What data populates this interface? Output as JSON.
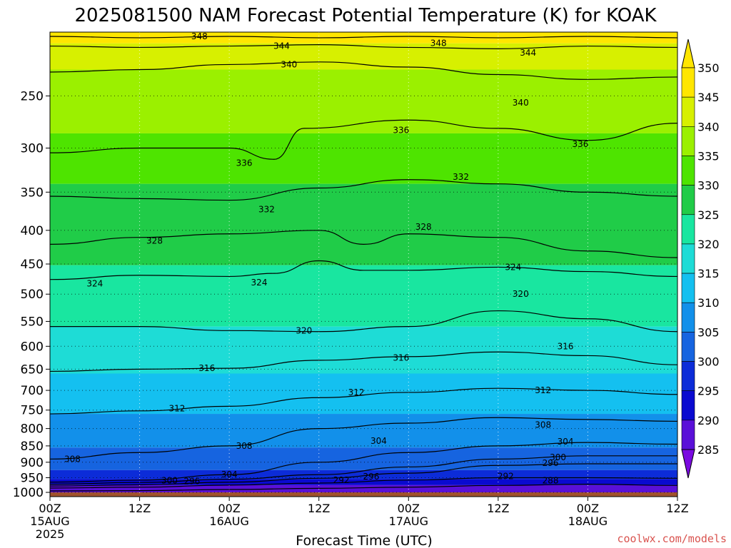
{
  "chart_data": {
    "type": "contour",
    "title": "2025081500 NAM Forecast Potential Temperature (K) for KOAK",
    "xlabel": "Forecast Time (UTC)",
    "ylabel": "",
    "credit": "coolwx.com/models",
    "x_ticks": [
      {
        "hours": 0,
        "label": "00Z",
        "sub1": "15AUG",
        "sub2": "2025"
      },
      {
        "hours": 12,
        "label": "12Z",
        "sub1": "",
        "sub2": ""
      },
      {
        "hours": 24,
        "label": "00Z",
        "sub1": "16AUG",
        "sub2": ""
      },
      {
        "hours": 36,
        "label": "12Z",
        "sub1": "",
        "sub2": ""
      },
      {
        "hours": 48,
        "label": "00Z",
        "sub1": "17AUG",
        "sub2": ""
      },
      {
        "hours": 60,
        "label": "12Z",
        "sub1": "",
        "sub2": ""
      },
      {
        "hours": 72,
        "label": "00Z",
        "sub1": "18AUG",
        "sub2": ""
      },
      {
        "hours": 84,
        "label": "12Z",
        "sub1": "",
        "sub2": ""
      }
    ],
    "x_range_hours": [
      0,
      84
    ],
    "y_ticks": [
      250,
      300,
      350,
      400,
      450,
      500,
      550,
      600,
      650,
      700,
      750,
      800,
      850,
      900,
      950,
      1000
    ],
    "y_range_hpa": [
      200,
      1015
    ],
    "y_scale": "log",
    "ground_pressure": 1000,
    "colorbar": {
      "ticks": [
        350,
        345,
        340,
        335,
        330,
        325,
        320,
        315,
        310,
        305,
        300,
        295,
        290,
        285
      ],
      "colors": [
        "#ffe600",
        "#d7f000",
        "#9bf000",
        "#4ee400",
        "#20cc48",
        "#19e6a0",
        "#1edcd6",
        "#14c0f0",
        "#1290ea",
        "#1664e0",
        "#0c2cd8",
        "#0a0ad0",
        "#5a10d8",
        "#7a0ae0"
      ]
    },
    "ground_color": "#a0522d",
    "fill_levels": [
      {
        "value": 350,
        "color": "#ffe600",
        "top_hpa": 200,
        "bottom_hpa": 208
      },
      {
        "value": 345,
        "color": "#d7f000",
        "top_hpa": 208,
        "bottom_hpa": 228
      },
      {
        "value": 340,
        "color": "#9bf000",
        "top_hpa": 228,
        "bottom_hpa": 285
      },
      {
        "value": 335,
        "color": "#4ee400",
        "top_hpa": 285,
        "bottom_hpa": 340
      },
      {
        "value": 330,
        "color": "#20cc48",
        "top_hpa": 340,
        "bottom_hpa": 452
      },
      {
        "value": 325,
        "color": "#19e6a0",
        "top_hpa": 452,
        "bottom_hpa": 560
      },
      {
        "value": 320,
        "color": "#1edcd6",
        "top_hpa": 560,
        "bottom_hpa": 660
      },
      {
        "value": 315,
        "color": "#14c0f0",
        "top_hpa": 660,
        "bottom_hpa": 760
      },
      {
        "value": 310,
        "color": "#1290ea",
        "top_hpa": 760,
        "bottom_hpa": 855
      },
      {
        "value": 305,
        "color": "#1664e0",
        "top_hpa": 855,
        "bottom_hpa": 925
      },
      {
        "value": 300,
        "color": "#0c2cd8",
        "top_hpa": 925,
        "bottom_hpa": 955
      },
      {
        "value": 295,
        "color": "#0a0ad0",
        "top_hpa": 955,
        "bottom_hpa": 975
      },
      {
        "value": 290,
        "color": "#5a10d8",
        "top_hpa": 975,
        "bottom_hpa": 1000
      }
    ],
    "contours": [
      {
        "level": 348,
        "points": [
          [
            0,
            203
          ],
          [
            12,
            204
          ],
          [
            24,
            203
          ],
          [
            36,
            204
          ],
          [
            48,
            203
          ],
          [
            60,
            204
          ],
          [
            72,
            203
          ],
          [
            84,
            204
          ]
        ],
        "labels": [
          {
            "hours": 20,
            "hpa": 203
          },
          {
            "hours": 52,
            "hpa": 208
          }
        ]
      },
      {
        "level": 344,
        "points": [
          [
            0,
            210
          ],
          [
            12,
            211
          ],
          [
            24,
            210
          ],
          [
            36,
            209
          ],
          [
            48,
            211
          ],
          [
            60,
            212
          ],
          [
            72,
            210
          ],
          [
            84,
            211
          ]
        ],
        "labels": [
          {
            "hours": 31,
            "hpa": 210
          },
          {
            "hours": 64,
            "hpa": 215
          }
        ]
      },
      {
        "level": 340,
        "points": [
          [
            0,
            230
          ],
          [
            12,
            228
          ],
          [
            24,
            224
          ],
          [
            36,
            222
          ],
          [
            48,
            226
          ],
          [
            60,
            232
          ],
          [
            72,
            236
          ],
          [
            84,
            234
          ]
        ],
        "labels": [
          {
            "hours": 32,
            "hpa": 224
          },
          {
            "hours": 63,
            "hpa": 256
          }
        ]
      },
      {
        "level": 336,
        "points": [
          [
            0,
            305
          ],
          [
            12,
            300
          ],
          [
            24,
            300
          ],
          [
            30,
            312
          ],
          [
            34,
            280
          ],
          [
            48,
            272
          ],
          [
            60,
            280
          ],
          [
            72,
            292
          ],
          [
            84,
            275
          ]
        ],
        "labels": [
          {
            "hours": 26,
            "hpa": 316
          },
          {
            "hours": 47,
            "hpa": 282
          },
          {
            "hours": 71,
            "hpa": 296
          }
        ]
      },
      {
        "level": 332,
        "points": [
          [
            0,
            355
          ],
          [
            12,
            358
          ],
          [
            24,
            360
          ],
          [
            36,
            345
          ],
          [
            48,
            335
          ],
          [
            60,
            340
          ],
          [
            72,
            350
          ],
          [
            84,
            355
          ]
        ],
        "labels": [
          {
            "hours": 29,
            "hpa": 372
          },
          {
            "hours": 55,
            "hpa": 332
          }
        ]
      },
      {
        "level": 328,
        "points": [
          [
            0,
            420
          ],
          [
            12,
            410
          ],
          [
            24,
            405
          ],
          [
            36,
            400
          ],
          [
            42,
            420
          ],
          [
            48,
            405
          ],
          [
            60,
            410
          ],
          [
            72,
            430
          ],
          [
            84,
            440
          ]
        ],
        "labels": [
          {
            "hours": 14,
            "hpa": 415
          },
          {
            "hours": 50,
            "hpa": 395
          }
        ]
      },
      {
        "level": 324,
        "points": [
          [
            0,
            475
          ],
          [
            12,
            468
          ],
          [
            24,
            470
          ],
          [
            30,
            465
          ],
          [
            36,
            445
          ],
          [
            42,
            460
          ],
          [
            48,
            460
          ],
          [
            60,
            455
          ],
          [
            72,
            462
          ],
          [
            84,
            470
          ]
        ],
        "labels": [
          {
            "hours": 6,
            "hpa": 482
          },
          {
            "hours": 28,
            "hpa": 480
          },
          {
            "hours": 62,
            "hpa": 455
          }
        ]
      },
      {
        "level": 320,
        "points": [
          [
            0,
            560
          ],
          [
            12,
            560
          ],
          [
            24,
            568
          ],
          [
            36,
            570
          ],
          [
            48,
            560
          ],
          [
            60,
            530
          ],
          [
            72,
            545
          ],
          [
            84,
            570
          ]
        ],
        "labels": [
          {
            "hours": 34,
            "hpa": 568
          },
          {
            "hours": 63,
            "hpa": 500
          }
        ]
      },
      {
        "level": 316,
        "points": [
          [
            0,
            655
          ],
          [
            12,
            650
          ],
          [
            24,
            648
          ],
          [
            36,
            630
          ],
          [
            48,
            622
          ],
          [
            60,
            612
          ],
          [
            72,
            620
          ],
          [
            84,
            640
          ]
        ],
        "labels": [
          {
            "hours": 21,
            "hpa": 648
          },
          {
            "hours": 47,
            "hpa": 625
          },
          {
            "hours": 69,
            "hpa": 600
          }
        ]
      },
      {
        "level": 312,
        "points": [
          [
            0,
            760
          ],
          [
            12,
            752
          ],
          [
            24,
            740
          ],
          [
            36,
            718
          ],
          [
            48,
            705
          ],
          [
            60,
            695
          ],
          [
            72,
            700
          ],
          [
            84,
            710
          ]
        ],
        "labels": [
          {
            "hours": 17,
            "hpa": 746
          },
          {
            "hours": 41,
            "hpa": 705
          },
          {
            "hours": 66,
            "hpa": 700
          }
        ]
      },
      {
        "level": 308,
        "points": [
          [
            0,
            890
          ],
          [
            12,
            870
          ],
          [
            24,
            850
          ],
          [
            36,
            800
          ],
          [
            48,
            785
          ],
          [
            60,
            770
          ],
          [
            72,
            775
          ],
          [
            84,
            780
          ]
        ],
        "labels": [
          {
            "hours": 3,
            "hpa": 890
          },
          {
            "hours": 26,
            "hpa": 850
          },
          {
            "hours": 66,
            "hpa": 790
          }
        ]
      },
      {
        "level": 304,
        "points": [
          [
            0,
            965
          ],
          [
            12,
            958
          ],
          [
            24,
            940
          ],
          [
            36,
            900
          ],
          [
            48,
            870
          ],
          [
            60,
            850
          ],
          [
            72,
            840
          ],
          [
            84,
            845
          ]
        ],
        "labels": [
          {
            "hours": 24,
            "hpa": 940
          },
          {
            "hours": 44,
            "hpa": 835
          },
          {
            "hours": 69,
            "hpa": 838
          }
        ]
      },
      {
        "level": 300,
        "points": [
          [
            0,
            972
          ],
          [
            12,
            966
          ],
          [
            24,
            955
          ],
          [
            36,
            940
          ],
          [
            48,
            915
          ],
          [
            60,
            890
          ],
          [
            72,
            880
          ],
          [
            84,
            880
          ]
        ],
        "labels": [
          {
            "hours": 16,
            "hpa": 960
          },
          {
            "hours": 68,
            "hpa": 885
          }
        ]
      },
      {
        "level": 296,
        "points": [
          [
            0,
            978
          ],
          [
            12,
            974
          ],
          [
            24,
            965
          ],
          [
            36,
            952
          ],
          [
            48,
            935
          ],
          [
            60,
            910
          ],
          [
            72,
            905
          ],
          [
            84,
            905
          ]
        ],
        "labels": [
          {
            "hours": 19,
            "hpa": 962
          },
          {
            "hours": 43,
            "hpa": 947
          },
          {
            "hours": 67,
            "hpa": 903
          }
        ]
      },
      {
        "level": 292,
        "points": [
          [
            0,
            985
          ],
          [
            12,
            982
          ],
          [
            24,
            975
          ],
          [
            36,
            968
          ],
          [
            48,
            958
          ],
          [
            60,
            950
          ],
          [
            72,
            950
          ],
          [
            84,
            952
          ]
        ],
        "labels": [
          {
            "hours": 39,
            "hpa": 958
          },
          {
            "hours": 61,
            "hpa": 945
          }
        ]
      },
      {
        "level": 288,
        "points": [
          [
            0,
            995
          ],
          [
            12,
            994
          ],
          [
            24,
            990
          ],
          [
            36,
            986
          ],
          [
            48,
            982
          ],
          [
            60,
            976
          ],
          [
            72,
            972
          ],
          [
            84,
            976
          ]
        ],
        "labels": [
          {
            "hours": 67,
            "hpa": 960
          }
        ]
      }
    ]
  }
}
